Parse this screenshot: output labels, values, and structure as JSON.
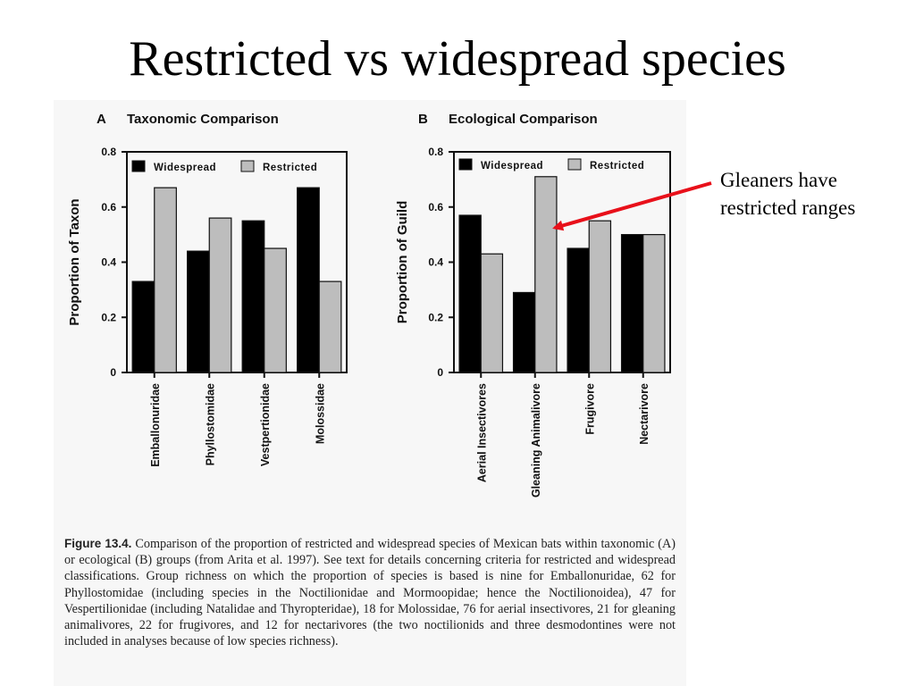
{
  "slide": {
    "title": "Restricted vs widespread species"
  },
  "annotation": {
    "line1": "Gleaners have",
    "line2": "restricted ranges",
    "arrow_color": "#e8101a"
  },
  "legend": {
    "widespread": "Widespread",
    "restricted": "Restricted"
  },
  "colors": {
    "widespread": "#000000",
    "restricted": "#bdbdbd"
  },
  "caption": {
    "label": "Figure 13.4.",
    "text": "Comparison of the proportion of restricted and widespread species of Mexican bats within taxonomic (A) or ecological (B) groups (from Arita et al. 1997). See text for details concerning criteria for restricted and widespread classifications. Group richness on which the proportion of species is based is nine for Emballonuridae, 62 for Phyllostomidae (including species in the Noctilionidae and Mormoopidae; hence the Noctilionoidea), 47 for Vespertilionidae (including Natalidae and Thyropteridae), 18 for Molossidae, 76 for aerial insectivores, 21 for gleaning animalivores, 22 for frugivores, and 12 for nectarivores (the two noctilionids and three desmodontines were not included in analyses because of low species richness)."
  },
  "chart_data": [
    {
      "type": "bar",
      "panel": "A",
      "title": "Taxonomic Comparison",
      "ylabel": "Proportion of Taxon",
      "xlabel": "",
      "ylim": [
        0,
        0.8
      ],
      "yticks": [
        "0",
        "0.2",
        "0.4",
        "0.6",
        "0.8"
      ],
      "categories": [
        "Emballonuridae",
        "Phyllostomidae",
        "Vestpertionidae",
        "Molossidae"
      ],
      "series": [
        {
          "name": "Widespread",
          "values": [
            0.33,
            0.44,
            0.55,
            0.67
          ]
        },
        {
          "name": "Restricted",
          "values": [
            0.67,
            0.56,
            0.45,
            0.33
          ]
        }
      ],
      "legend_position": "top"
    },
    {
      "type": "bar",
      "panel": "B",
      "title": "Ecological Comparison",
      "ylabel": "Proportion of Guild",
      "xlabel": "",
      "ylim": [
        0,
        0.8
      ],
      "yticks": [
        "0",
        "0.2",
        "0.4",
        "0.6",
        "0.8"
      ],
      "categories": [
        "Aerial Insectivores",
        "Gleaning Animalivore",
        "Frugivore",
        "Nectarivore"
      ],
      "series": [
        {
          "name": "Widespread",
          "values": [
            0.57,
            0.29,
            0.45,
            0.5
          ]
        },
        {
          "name": "Restricted",
          "values": [
            0.43,
            0.71,
            0.55,
            0.5
          ]
        }
      ],
      "legend_position": "top"
    }
  ]
}
